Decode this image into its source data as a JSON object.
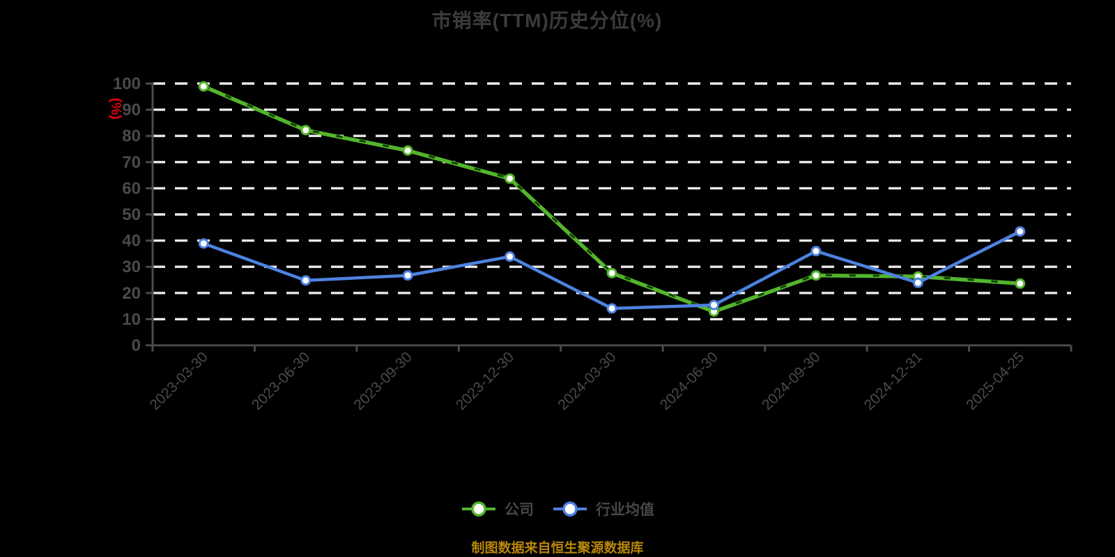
{
  "title": "市销率(TTM)历史分位(%)",
  "source_note": "制图数据来自恒生聚源数据库",
  "colors": {
    "background": "#000000",
    "title_text": "#3b3b3b",
    "axis_line": "#4a4a4a",
    "tick_label": "#4a4a4a",
    "gridline": "#ebebeb",
    "y_unit_label": "#e60012",
    "source_text": "#b8860b",
    "legend_text": "#474747",
    "marker_fill": "#ffffff"
  },
  "chart_data": {
    "type": "line",
    "title": "市销率(TTM)历史分位(%)",
    "categories": [
      "2023-03-30",
      "2023-06-30",
      "2023-09-30",
      "2023-12-30",
      "2024-03-30",
      "2024-06-30",
      "2024-09-30",
      "2024-12-31",
      "2025-04-25"
    ],
    "series": [
      {
        "id": "company",
        "name": "公司",
        "color": "#53b52c",
        "dash_overlay_color": "#143f00",
        "values": [
          98.9,
          82.2,
          74.4,
          63.7,
          27.6,
          12.9,
          26.7,
          26.3,
          23.6
        ]
      },
      {
        "id": "industry",
        "name": "行业均值",
        "color": "#4d82e0",
        "dash_overlay_color": null,
        "values": [
          38.9,
          24.8,
          26.7,
          33.9,
          14.1,
          15.4,
          36.0,
          23.9,
          43.5
        ]
      }
    ],
    "xlabel": "",
    "ylabel": "(%)",
    "ylim": [
      0,
      100
    ],
    "ytick_step": 10,
    "grid": "horizontal-dashed",
    "legend_position": "bottom"
  }
}
